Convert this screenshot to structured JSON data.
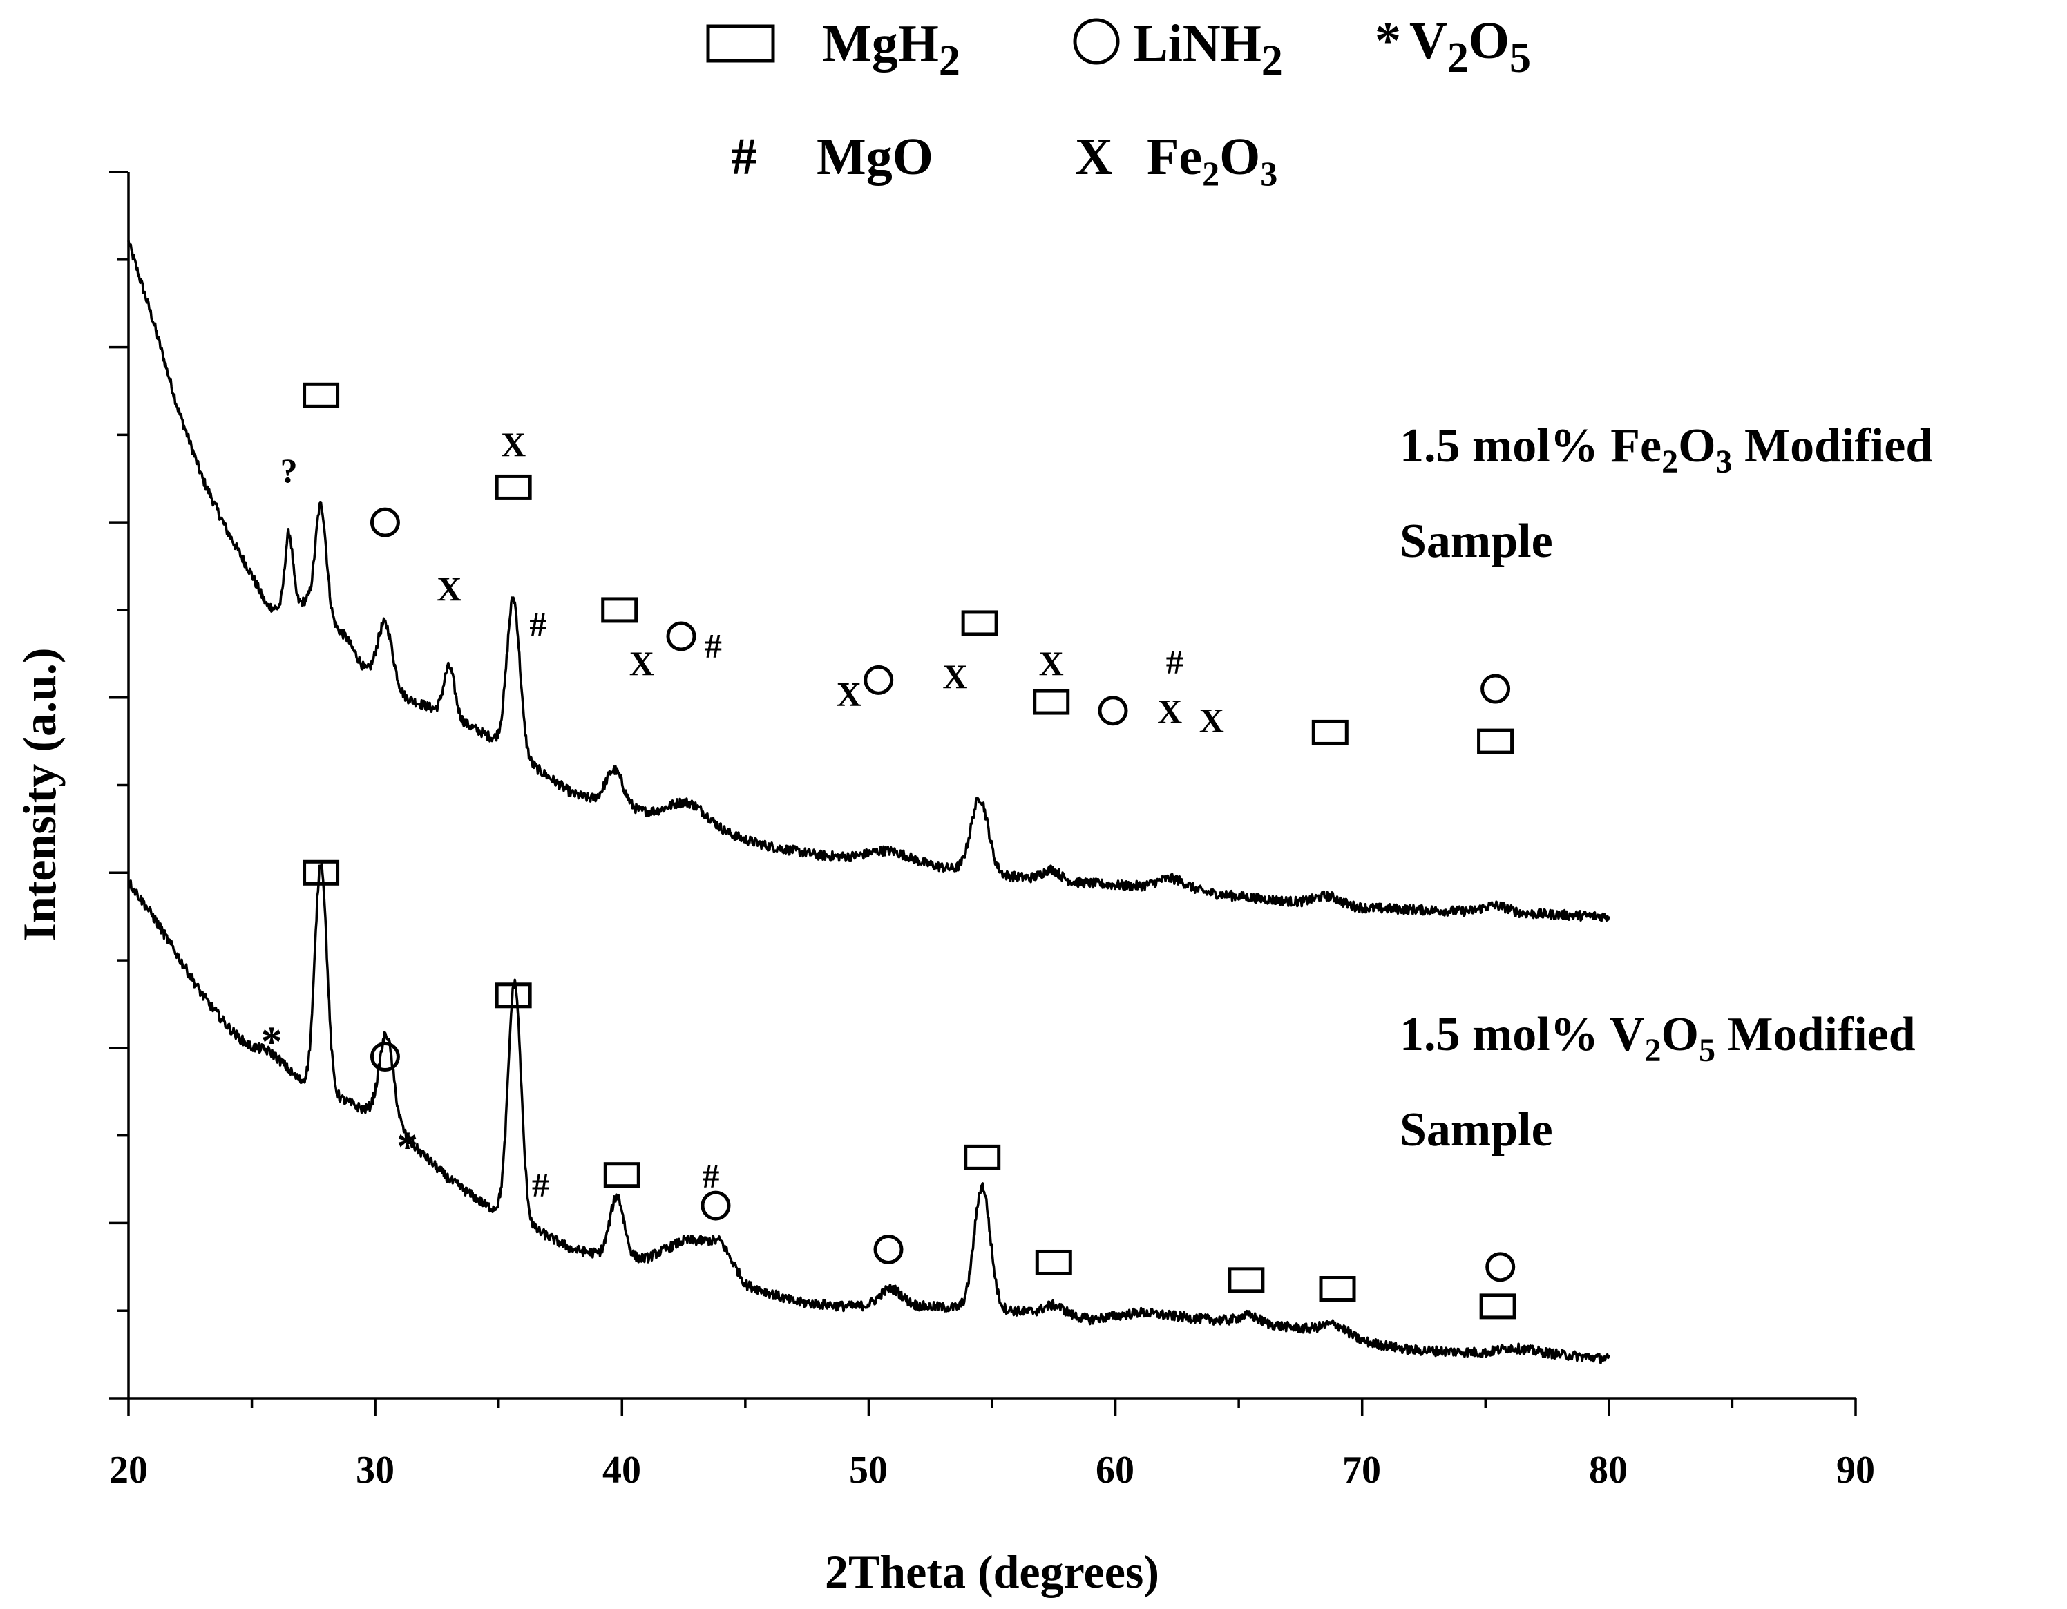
{
  "chart_data": {
    "type": "line",
    "xlabel": "2Theta (degrees)",
    "ylabel": "Intensity (a.u.)",
    "xlim": [
      20,
      90
    ],
    "ylim": [
      0,
      14
    ],
    "xticks": [
      "20",
      "30",
      "40",
      "50",
      "60",
      "70",
      "80",
      "90"
    ],
    "y_tick_labels_shown": false,
    "legend": {
      "position": "top",
      "entries": [
        {
          "symbol": "square",
          "name": "MgH",
          "sub": "2"
        },
        {
          "symbol": "circle",
          "name": "LiNH",
          "sub": "2"
        },
        {
          "symbol": "asterisk",
          "glyph": "*",
          "name": "V",
          "sub1": "2",
          "name2": "O",
          "sub2": "5"
        },
        {
          "symbol": "hash",
          "glyph": "#",
          "name": "MgO"
        },
        {
          "symbol": "x",
          "glyph": "X",
          "name": "Fe",
          "sub1": "2",
          "name2": "O",
          "sub2": "3"
        }
      ]
    },
    "series": [
      {
        "name": "1.5 mol% Fe2O3 Modified Sample",
        "label": {
          "line1_a": "1.5 mol% Fe",
          "line1_sub1": "2",
          "line1_b": "O",
          "line1_sub2": "3",
          "line1_c": " Modified",
          "line2": "Sample"
        },
        "baseline": [
          [
            20,
            13.2
          ],
          [
            21,
            12.3
          ],
          [
            22,
            11.3
          ],
          [
            23,
            10.5
          ],
          [
            24,
            9.9
          ],
          [
            25,
            9.4
          ],
          [
            25.6,
            9.05
          ],
          [
            26.2,
            9.0
          ],
          [
            27.2,
            9.1
          ],
          [
            28.8,
            8.7
          ],
          [
            29.6,
            8.3
          ],
          [
            31.2,
            8.0
          ],
          [
            33,
            7.8
          ],
          [
            35,
            7.5
          ],
          [
            37,
            7.1
          ],
          [
            38,
            6.9
          ],
          [
            40,
            6.75
          ],
          [
            42,
            6.6
          ],
          [
            44,
            6.45
          ],
          [
            46,
            6.3
          ],
          [
            48,
            6.2
          ],
          [
            50,
            6.15
          ],
          [
            52,
            6.1
          ],
          [
            55,
            5.98
          ],
          [
            58,
            5.9
          ],
          [
            62,
            5.82
          ],
          [
            66,
            5.7
          ],
          [
            70,
            5.6
          ],
          [
            75,
            5.55
          ],
          [
            80,
            5.5
          ]
        ],
        "peaks": [
          {
            "x": 26.5,
            "h": 0.85,
            "w": 0.16
          },
          {
            "x": 27.8,
            "h": 1.25,
            "w": 0.22
          },
          {
            "x": 30.4,
            "h": 0.7,
            "w": 0.3
          },
          {
            "x": 33.0,
            "h": 0.55,
            "w": 0.22
          },
          {
            "x": 35.6,
            "h": 1.75,
            "w": 0.26
          },
          {
            "x": 39.7,
            "h": 0.4,
            "w": 0.35
          },
          {
            "x": 42.7,
            "h": 0.25,
            "w": 0.8
          },
          {
            "x": 50.8,
            "h": 0.12,
            "w": 0.8
          },
          {
            "x": 54.5,
            "h": 0.85,
            "w": 0.35
          },
          {
            "x": 57.4,
            "h": 0.12,
            "w": 0.35
          },
          {
            "x": 62.3,
            "h": 0.12,
            "w": 0.6
          },
          {
            "x": 68.6,
            "h": 0.1,
            "w": 0.5
          },
          {
            "x": 75.4,
            "h": 0.08,
            "w": 0.5
          }
        ],
        "annotations": [
          {
            "x": 26.5,
            "y": 10.6,
            "mark": "?"
          },
          {
            "x": 27.8,
            "y": 11.45,
            "mark": "square"
          },
          {
            "x": 30.4,
            "y": 10.0,
            "mark": "circle"
          },
          {
            "x": 33.0,
            "y": 9.25,
            "mark": "X"
          },
          {
            "x": 35.6,
            "y": 10.4,
            "mark": "square"
          },
          {
            "x": 35.6,
            "y": 10.9,
            "mark": "X"
          },
          {
            "x": 36.6,
            "y": 8.85,
            "mark": "#"
          },
          {
            "x": 39.9,
            "y": 9.0,
            "mark": "square"
          },
          {
            "x": 40.8,
            "y": 8.4,
            "mark": "X"
          },
          {
            "x": 42.4,
            "y": 8.7,
            "mark": "circle"
          },
          {
            "x": 43.7,
            "y": 8.6,
            "mark": "#"
          },
          {
            "x": 49.2,
            "y": 8.05,
            "mark": "X"
          },
          {
            "x": 50.4,
            "y": 8.2,
            "mark": "circle"
          },
          {
            "x": 53.5,
            "y": 8.25,
            "mark": "X"
          },
          {
            "x": 54.5,
            "y": 8.85,
            "mark": "square"
          },
          {
            "x": 57.4,
            "y": 8.4,
            "mark": "X"
          },
          {
            "x": 57.4,
            "y": 7.95,
            "mark": "square"
          },
          {
            "x": 59.9,
            "y": 7.85,
            "mark": "circle"
          },
          {
            "x": 62.2,
            "y": 7.85,
            "mark": "X"
          },
          {
            "x": 62.4,
            "y": 8.42,
            "mark": "#"
          },
          {
            "x": 63.9,
            "y": 7.75,
            "mark": "X"
          },
          {
            "x": 68.7,
            "y": 7.6,
            "mark": "square"
          },
          {
            "x": 75.4,
            "y": 8.1,
            "mark": "circle"
          },
          {
            "x": 75.4,
            "y": 7.5,
            "mark": "square"
          }
        ]
      },
      {
        "name": "1.5 mol% V2O5 Modified Sample",
        "label": {
          "line1_a": "1.5 mol% V",
          "line1_sub1": "2",
          "line1_b": "O",
          "line1_sub2": "5",
          "line1_c": " Modified",
          "line2": "Sample"
        },
        "baseline": [
          [
            20,
            5.9
          ],
          [
            21,
            5.5
          ],
          [
            22,
            5.05
          ],
          [
            23,
            4.6
          ],
          [
            24,
            4.25
          ],
          [
            25,
            3.95
          ],
          [
            26,
            3.75
          ],
          [
            27,
            3.6
          ],
          [
            28,
            3.5
          ],
          [
            29.5,
            3.3
          ],
          [
            30.5,
            3.25
          ],
          [
            31.5,
            2.9
          ],
          [
            33,
            2.5
          ],
          [
            34.5,
            2.2
          ],
          [
            36,
            2.0
          ],
          [
            38,
            1.7
          ],
          [
            40,
            1.6
          ],
          [
            41,
            1.6
          ],
          [
            42.5,
            1.8
          ],
          [
            44,
            1.8
          ],
          [
            45,
            1.3
          ],
          [
            47,
            1.1
          ],
          [
            49,
            1.05
          ],
          [
            52,
            1.05
          ],
          [
            55,
            1.02
          ],
          [
            58,
            0.95
          ],
          [
            59,
            0.9
          ],
          [
            61,
            0.98
          ],
          [
            63,
            0.92
          ],
          [
            66,
            0.85
          ],
          [
            68,
            0.78
          ],
          [
            70,
            0.65
          ],
          [
            72,
            0.55
          ],
          [
            75,
            0.52
          ],
          [
            76,
            0.58
          ],
          [
            78,
            0.5
          ],
          [
            80,
            0.45
          ]
        ],
        "peaks": [
          {
            "x": 25.8,
            "h": 0.15,
            "w": 0.6
          },
          {
            "x": 27.8,
            "h": 2.6,
            "w": 0.24
          },
          {
            "x": 30.45,
            "h": 0.9,
            "w": 0.28
          },
          {
            "x": 35.65,
            "h": 2.7,
            "w": 0.26
          },
          {
            "x": 39.8,
            "h": 0.7,
            "w": 0.28
          },
          {
            "x": 50.9,
            "h": 0.2,
            "w": 0.45
          },
          {
            "x": 54.6,
            "h": 1.4,
            "w": 0.32
          },
          {
            "x": 57.5,
            "h": 0.1,
            "w": 0.4
          },
          {
            "x": 65.4,
            "h": 0.08,
            "w": 0.4
          },
          {
            "x": 68.9,
            "h": 0.12,
            "w": 0.5
          }
        ],
        "annotations": [
          {
            "x": 27.8,
            "y": 6.0,
            "mark": "square"
          },
          {
            "x": 25.8,
            "y": 4.05,
            "mark": "*"
          },
          {
            "x": 30.4,
            "y": 3.9,
            "mark": "circle"
          },
          {
            "x": 31.3,
            "y": 2.85,
            "mark": "*"
          },
          {
            "x": 35.6,
            "y": 4.6,
            "mark": "square"
          },
          {
            "x": 36.7,
            "y": 2.45,
            "mark": "#"
          },
          {
            "x": 40.0,
            "y": 2.55,
            "mark": "square"
          },
          {
            "x": 43.6,
            "y": 2.55,
            "mark": "#"
          },
          {
            "x": 43.8,
            "y": 2.2,
            "mark": "circle"
          },
          {
            "x": 50.8,
            "y": 1.7,
            "mark": "circle"
          },
          {
            "x": 54.6,
            "y": 2.75,
            "mark": "square"
          },
          {
            "x": 57.5,
            "y": 1.55,
            "mark": "square"
          },
          {
            "x": 65.3,
            "y": 1.35,
            "mark": "square"
          },
          {
            "x": 69.0,
            "y": 1.25,
            "mark": "square"
          },
          {
            "x": 75.6,
            "y": 1.5,
            "mark": "circle"
          },
          {
            "x": 75.5,
            "y": 1.05,
            "mark": "square"
          }
        ]
      }
    ]
  }
}
